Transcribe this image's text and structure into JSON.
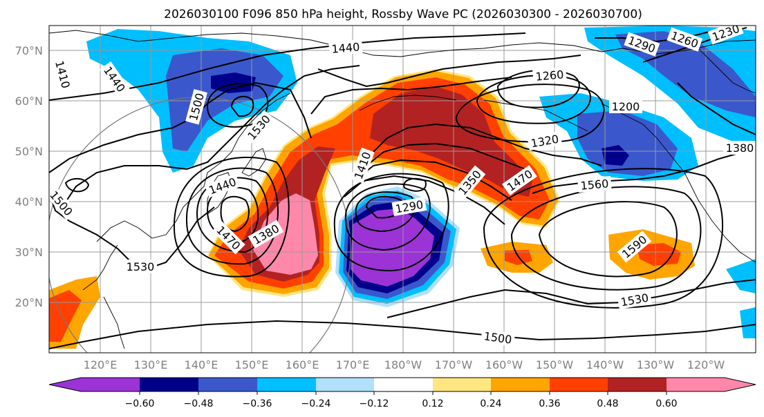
{
  "figure": {
    "title": "2026030100 F096 850 hPa height, Rossby Wave PC (2026030300 - 2026030700)"
  },
  "map": {
    "lat_labels": [
      "20°N",
      "30°N",
      "40°N",
      "50°N",
      "60°N",
      "70°N"
    ],
    "lon_labels": [
      "120°E",
      "130°E",
      "140°E",
      "150°E",
      "160°E",
      "170°E",
      "180°W",
      "170°W",
      "160°W",
      "150°W",
      "140°W",
      "130°W",
      "120°W"
    ],
    "contour_labels": [
      {
        "text": "1440"
      },
      {
        "text": "1410"
      },
      {
        "text": "1440"
      },
      {
        "text": "1530"
      },
      {
        "text": "1500"
      },
      {
        "text": "1260"
      },
      {
        "text": "1290"
      },
      {
        "text": "1260"
      },
      {
        "text": "1230"
      },
      {
        "text": "1200"
      },
      {
        "text": "1320"
      },
      {
        "text": "1380"
      },
      {
        "text": "1410"
      },
      {
        "text": "1350"
      },
      {
        "text": "1470"
      },
      {
        "text": "1560"
      },
      {
        "text": "1440"
      },
      {
        "text": "1380"
      },
      {
        "text": "1470"
      },
      {
        "text": "1290"
      },
      {
        "text": "1500"
      },
      {
        "text": "1530"
      },
      {
        "text": "1590"
      },
      {
        "text": "1530"
      },
      {
        "text": "1500"
      }
    ]
  },
  "colorbar": {
    "tick_labels": [
      "−0.60",
      "−0.48",
      "−0.36",
      "−0.24",
      "−0.12",
      "0.12",
      "0.24",
      "0.36",
      "0.48",
      "0.60"
    ],
    "bins": [
      {
        "color": "#9b33d6"
      },
      {
        "color": "#00008b"
      },
      {
        "color": "#3a58cc"
      },
      {
        "color": "#00bfff"
      },
      {
        "color": "#b0e0fb"
      },
      {
        "color": "#ffffff"
      },
      {
        "color": "#ffe680"
      },
      {
        "color": "#ffa500"
      },
      {
        "color": "#ff4000"
      },
      {
        "color": "#b22222"
      },
      {
        "color": "#ff88aa"
      }
    ]
  },
  "colors": {
    "purple": "#9b33d6",
    "navy": "#00008b",
    "blue": "#3a58cc",
    "cyan": "#00bfff",
    "lightblue": "#b0e0fb",
    "yellow": "#ffe680",
    "orange": "#ffa500",
    "red": "#ff4000",
    "darkred": "#b22222",
    "pink": "#ff88aa"
  }
}
